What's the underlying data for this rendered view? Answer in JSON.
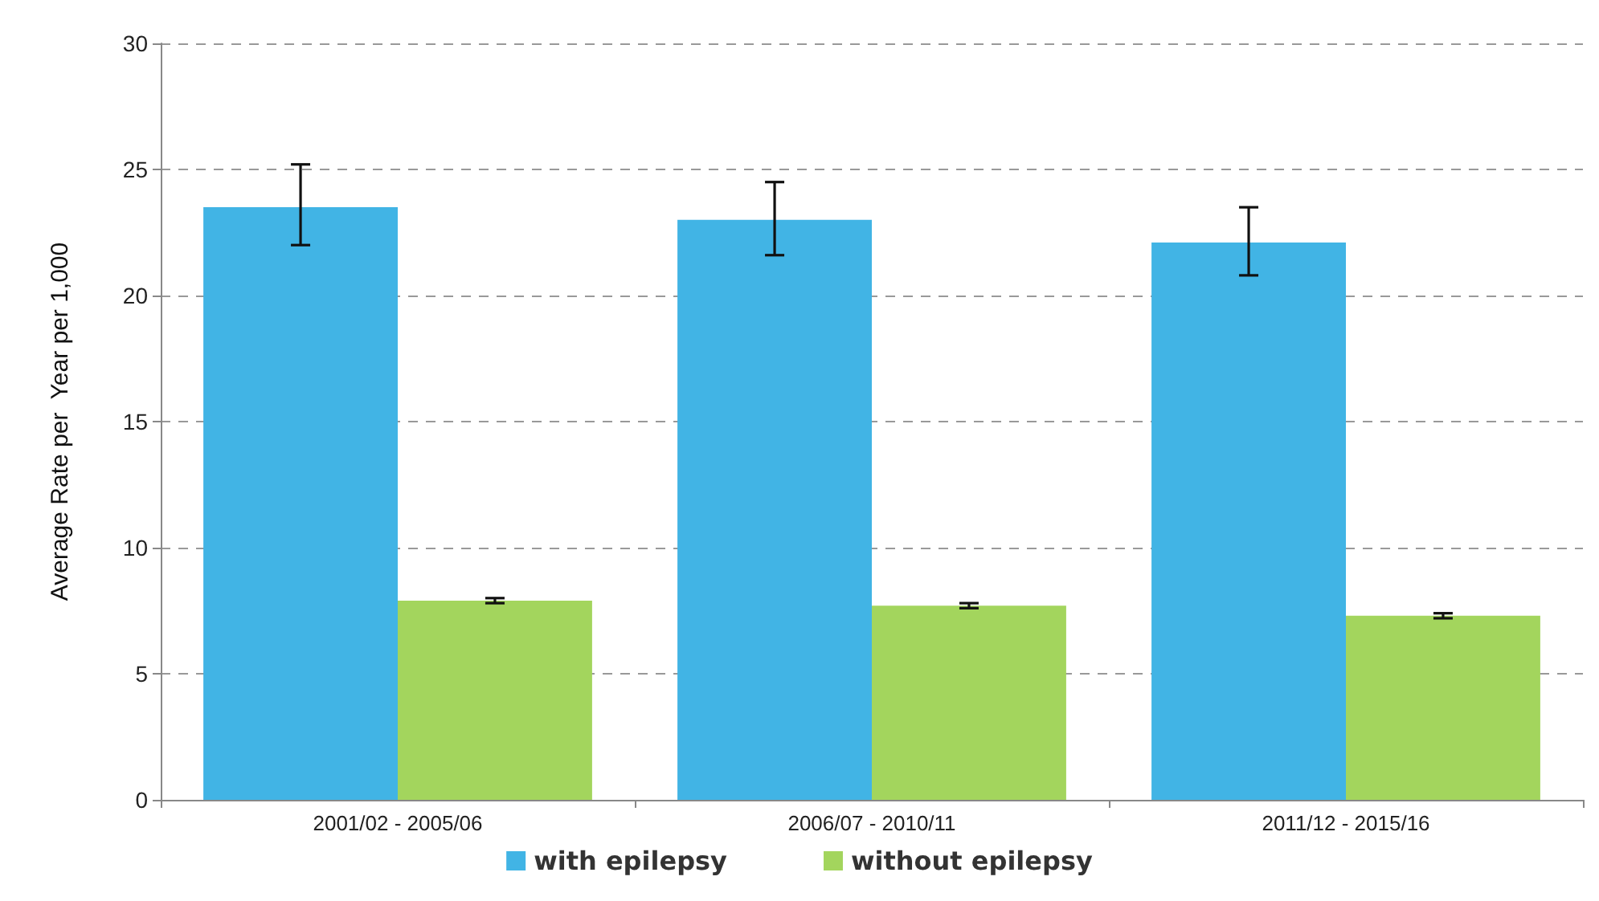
{
  "chart_data": {
    "type": "bar",
    "ylabel": "Average Rate per  Year per 1,000",
    "categories": [
      "2001/02 - 2005/06",
      "2006/07 - 2010/11",
      "2011/12 - 2015/16"
    ],
    "series": [
      {
        "name": "with epilepsy",
        "color": "#41b4e5",
        "values": [
          23.5,
          23.0,
          22.1
        ],
        "errors": [
          [
            22.0,
            25.2
          ],
          [
            21.6,
            24.5
          ],
          [
            20.8,
            23.5
          ]
        ]
      },
      {
        "name": "without epilepsy",
        "color": "#a3d55d",
        "values": [
          7.9,
          7.7,
          7.3
        ],
        "errors": [
          [
            7.8,
            8.0
          ],
          [
            7.6,
            7.8
          ],
          [
            7.2,
            7.4
          ]
        ]
      }
    ],
    "ylim": [
      0,
      30
    ],
    "yticks": [
      0,
      5,
      10,
      15,
      20,
      25,
      30
    ],
    "grid": "y",
    "legend": "bottom"
  }
}
